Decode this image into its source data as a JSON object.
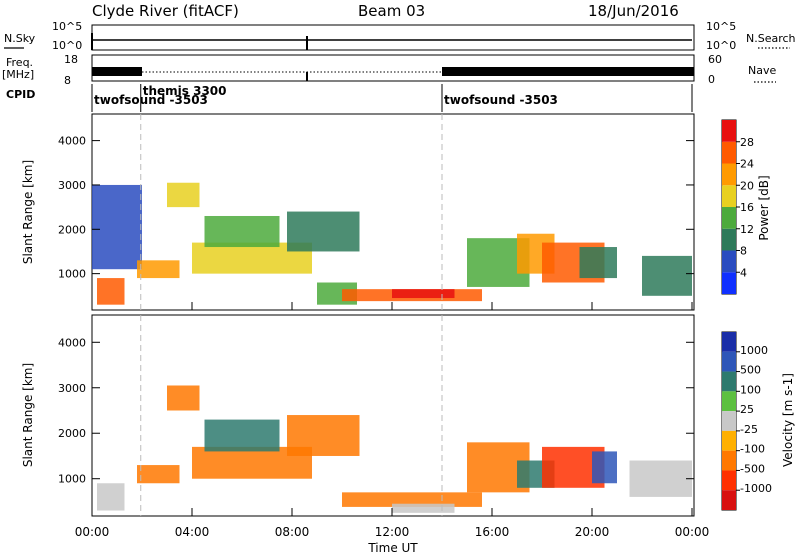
{
  "header": {
    "title": "Clyde River (fitACF)",
    "beam": "Beam 03",
    "date": "18/Jun/2016"
  },
  "noise_panel": {
    "left_label": "N.Sky",
    "right_label": "N.Search",
    "ytick_top": "10^5",
    "ytick_bottom": "10^0",
    "right_tick_top": "10^5",
    "right_tick_bottom": "10^0"
  },
  "freq_panel": {
    "left_label_line1": "Freq.",
    "left_label_line2": "[MHz]",
    "right_label": "Nave",
    "ytick_top": "18",
    "ytick_bottom": "8",
    "right_tick_top": "60",
    "right_tick_bottom": "0"
  },
  "cpid_panel": {
    "label": "CPID",
    "segments": [
      {
        "start_hour": 0.0,
        "name": "twofsound -3503",
        "row": 1
      },
      {
        "start_hour": 1.95,
        "name": "themis 3300",
        "row": 0
      },
      {
        "start_hour": 14.0,
        "name": "twofsound -3503",
        "row": 1
      }
    ]
  },
  "x_axis": {
    "label": "Time UT",
    "ticks": [
      "00:00",
      "04:00",
      "08:00",
      "12:00",
      "16:00",
      "20:00",
      "00:00"
    ]
  },
  "power_panel": {
    "ylabel": "Slant Range [km]",
    "yticks": [
      "1000",
      "2000",
      "3000",
      "4000"
    ],
    "colorbar_label": "Power [dB]",
    "colorbar_ticks": [
      "4",
      "8",
      "12",
      "16",
      "20",
      "24",
      "28"
    ],
    "colorbar_colors": [
      "#1030ff",
      "#2a4cc0",
      "#2e7a5a",
      "#4caa3c",
      "#e8d020",
      "#ff9a00",
      "#ff5a00",
      "#e81010"
    ]
  },
  "velocity_panel": {
    "ylabel": "Slant Range [km]",
    "yticks": [
      "1000",
      "2000",
      "3000",
      "4000"
    ],
    "colorbar_label": "Velocity [m s-1]",
    "colorbar_ticks": [
      "1000",
      "500",
      "100",
      "25",
      "-25",
      "-100",
      "-500",
      "-1000"
    ],
    "colorbar_colors": [
      "#1a2ea8",
      "#2e56b8",
      "#2e7a6e",
      "#5cc040",
      "#c8c8c8",
      "#ffb000",
      "#ff7800",
      "#ff3000",
      "#d81010"
    ]
  },
  "chart_data": {
    "type": "heatmap",
    "x_range_hours": [
      0,
      24
    ],
    "y_range_km": [
      180,
      4600
    ],
    "power_blobs": [
      {
        "t0": 0.2,
        "t1": 1.3,
        "r0": 300,
        "r1": 900,
        "value": 26
      },
      {
        "t0": 0.0,
        "t1": 2.0,
        "r0": 1100,
        "r1": 3000,
        "value": 6
      },
      {
        "t0": 1.8,
        "t1": 3.5,
        "r0": 900,
        "r1": 1300,
        "value": 20
      },
      {
        "t0": 3.0,
        "t1": 4.3,
        "r0": 2500,
        "r1": 3050,
        "value": 18
      },
      {
        "t0": 4.0,
        "t1": 8.8,
        "r0": 1000,
        "r1": 1700,
        "value": 18
      },
      {
        "t0": 4.5,
        "t1": 7.5,
        "r0": 1600,
        "r1": 2300,
        "value": 14
      },
      {
        "t0": 7.8,
        "t1": 10.7,
        "r0": 1500,
        "r1": 2400,
        "value": 10
      },
      {
        "t0": 9.0,
        "t1": 10.6,
        "r0": 300,
        "r1": 800,
        "value": 12
      },
      {
        "t0": 10.0,
        "t1": 15.6,
        "r0": 380,
        "r1": 650,
        "value": 24
      },
      {
        "t0": 12.0,
        "t1": 14.5,
        "r0": 450,
        "r1": 650,
        "value": 28
      },
      {
        "t0": 15.0,
        "t1": 17.5,
        "r0": 700,
        "r1": 1800,
        "value": 14
      },
      {
        "t0": 17.0,
        "t1": 18.5,
        "r0": 1000,
        "r1": 1900,
        "value": 20
      },
      {
        "t0": 18.0,
        "t1": 20.5,
        "r0": 800,
        "r1": 1700,
        "value": 24
      },
      {
        "t0": 19.5,
        "t1": 21.0,
        "r0": 900,
        "r1": 1600,
        "value": 10
      },
      {
        "t0": 22.0,
        "t1": 24.0,
        "r0": 500,
        "r1": 1400,
        "value": 8
      }
    ],
    "velocity_blobs": [
      {
        "t0": 0.2,
        "t1": 1.3,
        "r0": 300,
        "r1": 900,
        "value": 0
      },
      {
        "t0": 1.8,
        "t1": 3.5,
        "r0": 900,
        "r1": 1300,
        "value": -300
      },
      {
        "t0": 3.0,
        "t1": 4.3,
        "r0": 2500,
        "r1": 3050,
        "value": -150
      },
      {
        "t0": 4.0,
        "t1": 8.8,
        "r0": 1000,
        "r1": 1700,
        "value": -300
      },
      {
        "t0": 4.5,
        "t1": 7.5,
        "r0": 1600,
        "r1": 2300,
        "value": 200
      },
      {
        "t0": 7.8,
        "t1": 10.7,
        "r0": 1500,
        "r1": 2400,
        "value": -250
      },
      {
        "t0": 10.0,
        "t1": 15.6,
        "r0": 380,
        "r1": 700,
        "value": -200
      },
      {
        "t0": 12.0,
        "t1": 14.5,
        "r0": 250,
        "r1": 450,
        "value": 0
      },
      {
        "t0": 15.0,
        "t1": 17.5,
        "r0": 700,
        "r1": 1800,
        "value": -300
      },
      {
        "t0": 17.0,
        "t1": 18.5,
        "r0": 800,
        "r1": 1400,
        "value": 400
      },
      {
        "t0": 18.0,
        "t1": 20.5,
        "r0": 800,
        "r1": 1700,
        "value": -600
      },
      {
        "t0": 20.0,
        "t1": 21.0,
        "r0": 900,
        "r1": 1600,
        "value": 800
      },
      {
        "t0": 21.5,
        "t1": 24.0,
        "r0": 600,
        "r1": 1400,
        "value": 0
      }
    ]
  }
}
